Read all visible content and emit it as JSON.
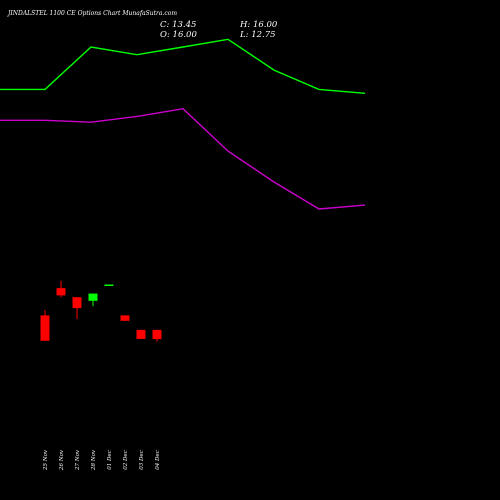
{
  "header": {
    "title": "JINDALSTEL 1100 CE Options Chart MunafaSutra.com",
    "close": "C: 13.45",
    "high": "H: 16.00",
    "open": "O: 16.00",
    "low": "L: 12.75"
  },
  "colors": {
    "background": "#000000",
    "up_candle": "#00ff00",
    "down_candle": "#ff0000",
    "upper_line": "#00ff00",
    "lower_line": "#cc00cc",
    "text": "#ffffff"
  },
  "chart_data": {
    "type": "candlestick",
    "title": "JINDALSTEL 1100 CE Options Chart MunafaSutra.com",
    "categories": [
      "25 Nov",
      "26 Nov",
      "27 Nov",
      "28 Nov",
      "01 Dec",
      "02 Dec",
      "03 Dec",
      "04 Dec"
    ],
    "price_range": [
      0,
      38
    ],
    "candles": [
      {
        "date": "25 Nov",
        "open": 20.0,
        "high": 21.5,
        "low": 13.0,
        "close": 13.0,
        "color": "red"
      },
      {
        "date": "26 Nov",
        "open": 27.5,
        "high": 29.5,
        "low": 25.0,
        "close": 25.5,
        "color": "red"
      },
      {
        "date": "27 Nov",
        "open": 25.0,
        "high": 25.0,
        "low": 19.0,
        "close": 22.0,
        "color": "red"
      },
      {
        "date": "28 Nov",
        "open": 24.0,
        "high": 26.0,
        "low": 22.5,
        "close": 26.0,
        "color": "green"
      },
      {
        "date": "01 Dec",
        "open": 28.5,
        "high": 28.5,
        "low": 28.5,
        "close": 28.5,
        "color": "green"
      },
      {
        "date": "02 Dec",
        "open": 20.0,
        "high": 20.0,
        "low": 18.5,
        "close": 18.5,
        "color": "red"
      },
      {
        "date": "03 Dec",
        "open": 16.0,
        "high": 16.0,
        "low": 13.5,
        "close": 13.5,
        "color": "red"
      },
      {
        "date": "04 Dec",
        "open": 16.0,
        "high": 16.0,
        "low": 12.75,
        "close": 13.45,
        "color": "red"
      }
    ],
    "overlay_lines": [
      {
        "values": [
          92,
          92,
          103,
          101,
          103,
          105,
          97,
          92,
          91
        ],
        "color": "#00ff00"
      },
      {
        "values": [
          84,
          84,
          83.5,
          85,
          87,
          76,
          68,
          61,
          62
        ],
        "color": "#cc00cc"
      }
    ]
  }
}
